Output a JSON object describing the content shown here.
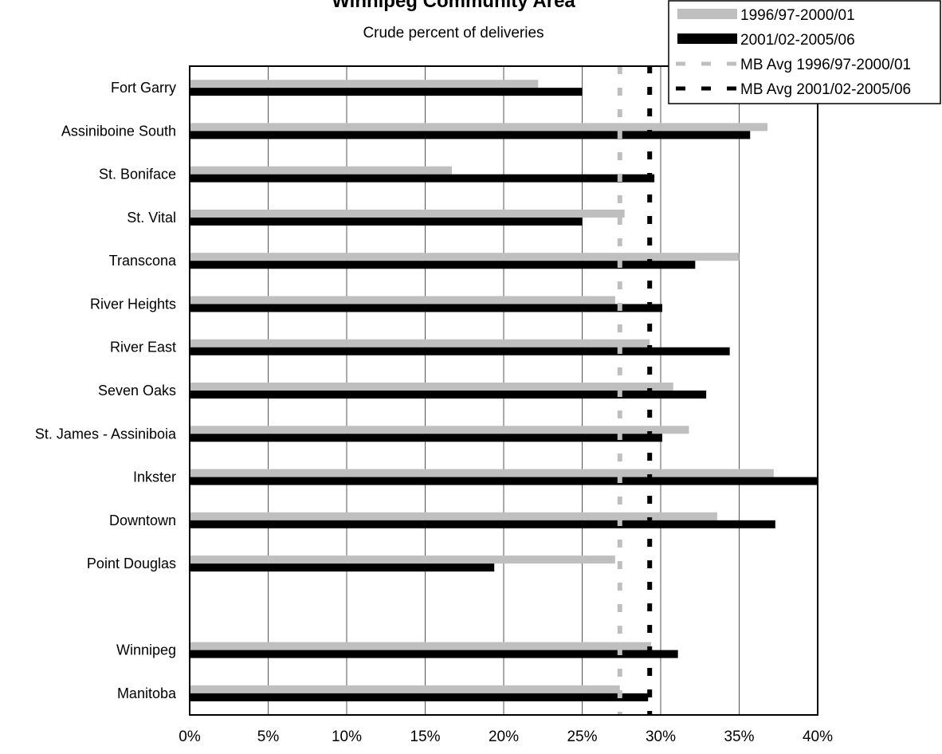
{
  "chart_data": {
    "type": "bar",
    "orientation": "horizontal",
    "title": "Winnipeg Community Area",
    "subtitle": "Crude percent of deliveries",
    "categories": [
      "Fort Garry",
      "Assiniboine South",
      "St. Boniface",
      "St. Vital",
      "Transcona",
      "River Heights",
      "River East",
      "Seven Oaks",
      "St. James - Assiniboia",
      "Inkster",
      "Downtown",
      "Point Douglas",
      "",
      "Winnipeg",
      "Manitoba"
    ],
    "series": [
      {
        "name": "1996/97-2000/01",
        "color": "#bfbfbf",
        "values": [
          22.2,
          36.8,
          16.7,
          27.7,
          35.0,
          27.1,
          29.3,
          30.8,
          31.8,
          37.2,
          33.6,
          27.1,
          null,
          29.4,
          27.4
        ]
      },
      {
        "name": "2001/02-2005/06",
        "color": "#000000",
        "values": [
          25.0,
          35.7,
          29.6,
          25.0,
          32.2,
          30.1,
          34.4,
          32.9,
          30.1,
          40.0,
          37.3,
          19.4,
          null,
          31.1,
          29.2
        ]
      }
    ],
    "reference_lines": [
      {
        "name": "MB Avg 1996/97-2000/01",
        "value": 27.4,
        "color": "#bfbfbf",
        "style": "dashed"
      },
      {
        "name": "MB Avg 2001/02-2005/06",
        "value": 29.3,
        "color": "#000000",
        "style": "dashed"
      }
    ],
    "x_ticks": [
      "0%",
      "5%",
      "10%",
      "15%",
      "20%",
      "25%",
      "30%",
      "35%",
      "40%"
    ],
    "xlim": [
      0,
      40
    ],
    "grid": true,
    "legend_position": "top-right"
  }
}
